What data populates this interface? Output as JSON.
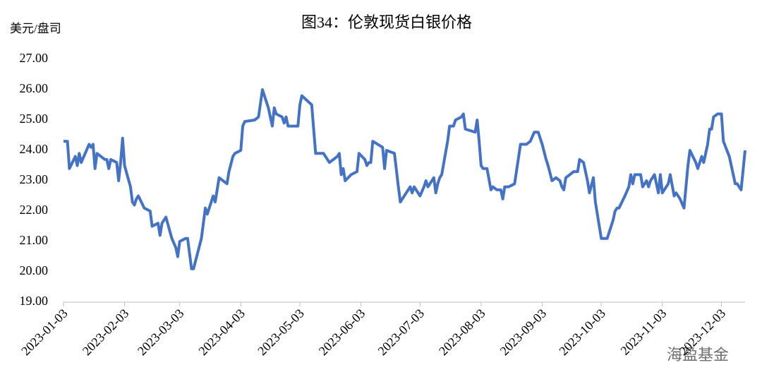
{
  "chart_data": {
    "type": "line",
    "title": "图34：伦敦现货白银价格",
    "y_label": "美元/盘司",
    "watermark": "海盈基金",
    "x": [
      "2023-01-03",
      "2023-01-05",
      "2023-01-06",
      "2023-01-09",
      "2023-01-10",
      "2023-01-11",
      "2023-01-12",
      "2023-01-16",
      "2023-01-17",
      "2023-01-18",
      "2023-01-19",
      "2023-01-20",
      "2023-01-24",
      "2023-01-25",
      "2023-01-26",
      "2023-01-27",
      "2023-01-30",
      "2023-01-31",
      "2023-02-01",
      "2023-02-02",
      "2023-02-03",
      "2023-02-06",
      "2023-02-07",
      "2023-02-08",
      "2023-02-09",
      "2023-02-10",
      "2023-02-13",
      "2023-02-16",
      "2023-02-17",
      "2023-02-20",
      "2023-02-21",
      "2023-02-22",
      "2023-02-24",
      "2023-02-27",
      "2023-03-01",
      "2023-03-02",
      "2023-03-03",
      "2023-03-06",
      "2023-03-07",
      "2023-03-08",
      "2023-03-09",
      "2023-03-10",
      "2023-03-14",
      "2023-03-16",
      "2023-03-17",
      "2023-03-20",
      "2023-03-21",
      "2023-03-23",
      "2023-03-27",
      "2023-03-28",
      "2023-03-30",
      "2023-03-31",
      "2023-04-03",
      "2023-04-04",
      "2023-04-05",
      "2023-04-10",
      "2023-04-12",
      "2023-04-14",
      "2023-04-17",
      "2023-04-19",
      "2023-04-20",
      "2023-04-21",
      "2023-04-24",
      "2023-04-25",
      "2023-04-26",
      "2023-04-27",
      "2023-05-01",
      "2023-05-02",
      "2023-05-03",
      "2023-05-04",
      "2023-05-09",
      "2023-05-11",
      "2023-05-15",
      "2023-05-18",
      "2023-05-22",
      "2023-05-23",
      "2023-05-24",
      "2023-05-25",
      "2023-05-26",
      "2023-05-29",
      "2023-06-01",
      "2023-06-02",
      "2023-06-05",
      "2023-06-06",
      "2023-06-07",
      "2023-06-08",
      "2023-06-09",
      "2023-06-14",
      "2023-06-15",
      "2023-06-16",
      "2023-06-20",
      "2023-06-22",
      "2023-06-23",
      "2023-06-26",
      "2023-06-28",
      "2023-06-29",
      "2023-06-30",
      "2023-07-03",
      "2023-07-05",
      "2023-07-06",
      "2023-07-07",
      "2023-07-10",
      "2023-07-11",
      "2023-07-12",
      "2023-07-13",
      "2023-07-14",
      "2023-07-17",
      "2023-07-18",
      "2023-07-20",
      "2023-07-21",
      "2023-07-24",
      "2023-07-25",
      "2023-07-26",
      "2023-07-31",
      "2023-08-01",
      "2023-08-02",
      "2023-08-03",
      "2023-08-04",
      "2023-08-06",
      "2023-08-08",
      "2023-08-09",
      "2023-08-11",
      "2023-08-13",
      "2023-08-14",
      "2023-08-15",
      "2023-08-17",
      "2023-08-20",
      "2023-08-23",
      "2023-08-26",
      "2023-08-28",
      "2023-08-30",
      "2023-09-01",
      "2023-09-03",
      "2023-09-05",
      "2023-09-06",
      "2023-09-08",
      "2023-09-10",
      "2023-09-12",
      "2023-09-13",
      "2023-09-14",
      "2023-09-15",
      "2023-09-17",
      "2023-09-19",
      "2023-09-21",
      "2023-09-22",
      "2023-09-24",
      "2023-09-26",
      "2023-09-27",
      "2023-09-29",
      "2023-09-30",
      "2023-10-03",
      "2023-10-04",
      "2023-10-06",
      "2023-10-09",
      "2023-10-10",
      "2023-10-11",
      "2023-10-12",
      "2023-10-15",
      "2023-10-17",
      "2023-10-18",
      "2023-10-19",
      "2023-10-20",
      "2023-10-23",
      "2023-10-24",
      "2023-10-26",
      "2023-10-27",
      "2023-10-28",
      "2023-10-30",
      "2023-11-01",
      "2023-11-02",
      "2023-11-03",
      "2023-11-06",
      "2023-11-07",
      "2023-11-09",
      "2023-11-10",
      "2023-11-12",
      "2023-11-14",
      "2023-11-16",
      "2023-11-17",
      "2023-11-20",
      "2023-11-21",
      "2023-11-23",
      "2023-11-24",
      "2023-11-26",
      "2023-11-27",
      "2023-11-28",
      "2023-11-29",
      "2023-12-01",
      "2023-12-03",
      "2023-12-04",
      "2023-12-07",
      "2023-12-10",
      "2023-12-11",
      "2023-12-13",
      "2023-12-15"
    ],
    "series": [
      {
        "name": "伦敦现货白银",
        "color": "#4472c4",
        "values": [
          24.3,
          24.3,
          23.4,
          23.8,
          23.5,
          23.9,
          23.6,
          24.2,
          24.1,
          24.2,
          23.4,
          23.9,
          23.7,
          23.7,
          23.4,
          23.7,
          23.6,
          23.0,
          23.6,
          24.4,
          23.5,
          22.8,
          22.3,
          22.2,
          22.4,
          22.5,
          22.1,
          22.0,
          21.5,
          21.6,
          21.2,
          21.6,
          21.8,
          21.1,
          20.8,
          20.5,
          21.0,
          21.1,
          21.1,
          20.6,
          20.1,
          20.1,
          21.1,
          22.1,
          21.9,
          22.5,
          22.3,
          23.1,
          22.9,
          23.3,
          23.8,
          23.9,
          24.0,
          24.8,
          24.95,
          25.0,
          25.1,
          26.0,
          25.4,
          24.8,
          25.4,
          25.2,
          25.1,
          24.9,
          25.1,
          24.8,
          24.8,
          24.8,
          25.5,
          25.8,
          25.5,
          23.9,
          23.9,
          23.6,
          23.8,
          23.9,
          23.2,
          23.4,
          23.0,
          23.2,
          23.3,
          23.9,
          23.7,
          23.5,
          23.6,
          23.6,
          24.3,
          24.1,
          23.4,
          24.0,
          23.9,
          22.8,
          22.3,
          22.6,
          22.8,
          22.6,
          22.8,
          22.5,
          22.8,
          23.0,
          22.8,
          23.1,
          22.6,
          22.9,
          23.1,
          23.2,
          24.3,
          24.8,
          24.8,
          25.0,
          25.1,
          25.2,
          24.7,
          24.6,
          25.0,
          24.3,
          23.5,
          23.4,
          23.4,
          22.7,
          22.8,
          22.7,
          22.7,
          22.4,
          22.8,
          22.8,
          22.9,
          24.2,
          24.2,
          24.3,
          24.6,
          24.6,
          24.2,
          23.7,
          23.5,
          23.0,
          23.1,
          23.0,
          22.8,
          22.7,
          23.1,
          23.2,
          23.3,
          23.3,
          23.7,
          23.6,
          23.0,
          22.6,
          23.1,
          22.3,
          21.1,
          21.1,
          21.1,
          21.7,
          22.0,
          22.1,
          22.1,
          22.5,
          22.8,
          23.2,
          22.9,
          23.2,
          23.2,
          22.8,
          23.0,
          22.8,
          23.0,
          23.2,
          22.6,
          23.2,
          22.6,
          22.9,
          23.2,
          22.5,
          22.6,
          22.4,
          22.1,
          23.5,
          24.0,
          23.6,
          23.4,
          23.8,
          23.6,
          24.2,
          24.7,
          24.7,
          25.1,
          25.2,
          25.2,
          24.3,
          23.8,
          22.9,
          22.9,
          22.7,
          24.0
        ]
      }
    ],
    "xlim": [
      "2023-01-03",
      "2023-12-15"
    ],
    "xticks": [
      "2023-01-03",
      "2023-02-03",
      "2023-03-03",
      "2023-04-03",
      "2023-05-03",
      "2023-06-03",
      "2023-07-03",
      "2023-08-03",
      "2023-09-03",
      "2023-10-03",
      "2023-11-03",
      "2023-12-03"
    ],
    "ylim": [
      19,
      27
    ],
    "yticks": [
      {
        "value": 19,
        "label": "19.00"
      },
      {
        "value": 20,
        "label": "20.00"
      },
      {
        "value": 21,
        "label": "21.00"
      },
      {
        "value": 22,
        "label": "22.00"
      },
      {
        "value": 23,
        "label": "23.00"
      },
      {
        "value": 24,
        "label": "24.00"
      },
      {
        "value": 25,
        "label": "25.00"
      },
      {
        "value": 26,
        "label": "26.00"
      },
      {
        "value": 27,
        "label": "27.00"
      }
    ],
    "grid": false
  }
}
